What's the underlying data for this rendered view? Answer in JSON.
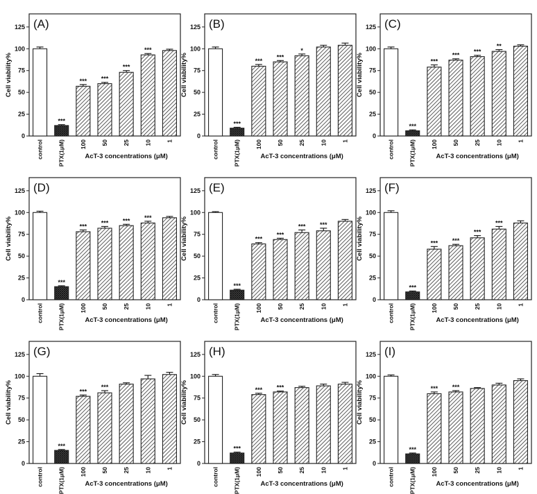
{
  "figure": {
    "ylabel": "Cell viability%",
    "xlabel": "AcT-3 concentrations (μM)",
    "categories": [
      "control",
      "PTX(1μM)",
      "100",
      "50",
      "25",
      "10",
      "1"
    ],
    "yticks": [
      "0",
      "25",
      "50",
      "75",
      "100",
      "125"
    ],
    "ylim": [
      0,
      140
    ],
    "colors": {
      "bar_stroke": "#222222",
      "hatch": "#333333",
      "control_fill": "#ffffff"
    }
  },
  "chart_data": [
    {
      "type": "bar",
      "title": "(A)",
      "values": [
        100,
        12,
        57,
        60,
        73,
        93,
        98
      ],
      "errors": [
        2,
        1,
        2,
        1.5,
        2,
        1.5,
        1.5
      ],
      "annotations": [
        "",
        "***",
        "***",
        "***",
        "***",
        "***",
        ""
      ]
    },
    {
      "type": "bar",
      "title": "(B)",
      "values": [
        100,
        9,
        80,
        85,
        92,
        102,
        104
      ],
      "errors": [
        2,
        1,
        2,
        1.5,
        2,
        2,
        2.5
      ],
      "annotations": [
        "",
        "***",
        "***",
        "***",
        "*",
        "",
        ""
      ]
    },
    {
      "type": "bar",
      "title": "(C)",
      "values": [
        100,
        6,
        79,
        87,
        91,
        97,
        103
      ],
      "errors": [
        2,
        1,
        2.5,
        1.5,
        1.5,
        2,
        1.5
      ],
      "annotations": [
        "",
        "***",
        "***",
        "***",
        "***",
        "**",
        ""
      ]
    },
    {
      "type": "bar",
      "title": "(D)",
      "values": [
        100,
        15,
        78,
        82,
        85,
        88,
        94
      ],
      "errors": [
        1.5,
        1,
        2,
        2,
        1.5,
        2,
        1.5
      ],
      "annotations": [
        "",
        "***",
        "***",
        "***",
        "***",
        "***",
        ""
      ]
    },
    {
      "type": "bar",
      "title": "(E)",
      "values": [
        100,
        11,
        64,
        69,
        77,
        79,
        90
      ],
      "errors": [
        1,
        1,
        1.5,
        1.5,
        3,
        3,
        2
      ],
      "annotations": [
        "",
        "***",
        "***",
        "***",
        "***",
        "***",
        ""
      ]
    },
    {
      "type": "bar",
      "title": "(F)",
      "values": [
        100,
        9,
        58,
        62,
        71,
        81,
        88
      ],
      "errors": [
        2,
        1,
        3,
        1.5,
        2.5,
        3,
        2.5
      ],
      "annotations": [
        "",
        "***",
        "***",
        "***",
        "***",
        "***",
        ""
      ]
    },
    {
      "type": "bar",
      "title": "(G)",
      "values": [
        100,
        15,
        77,
        81,
        91,
        97,
        102
      ],
      "errors": [
        3,
        1,
        1.5,
        2.5,
        1.5,
        4,
        2.5
      ],
      "annotations": [
        "",
        "***",
        "***",
        "***",
        "",
        "",
        ""
      ]
    },
    {
      "type": "bar",
      "title": "(H)",
      "values": [
        100,
        12,
        79,
        82,
        87,
        89,
        91
      ],
      "errors": [
        2,
        1,
        1.5,
        1,
        1.5,
        2,
        2
      ],
      "annotations": [
        "",
        "***",
        "***",
        "***",
        "",
        "",
        ""
      ]
    },
    {
      "type": "bar",
      "title": "(I)",
      "values": [
        100,
        11,
        80,
        82,
        86,
        90,
        95
      ],
      "errors": [
        1.5,
        1,
        2,
        1.5,
        1,
        2,
        2
      ],
      "annotations": [
        "",
        "***",
        "***",
        "***",
        "",
        "",
        ""
      ]
    }
  ]
}
